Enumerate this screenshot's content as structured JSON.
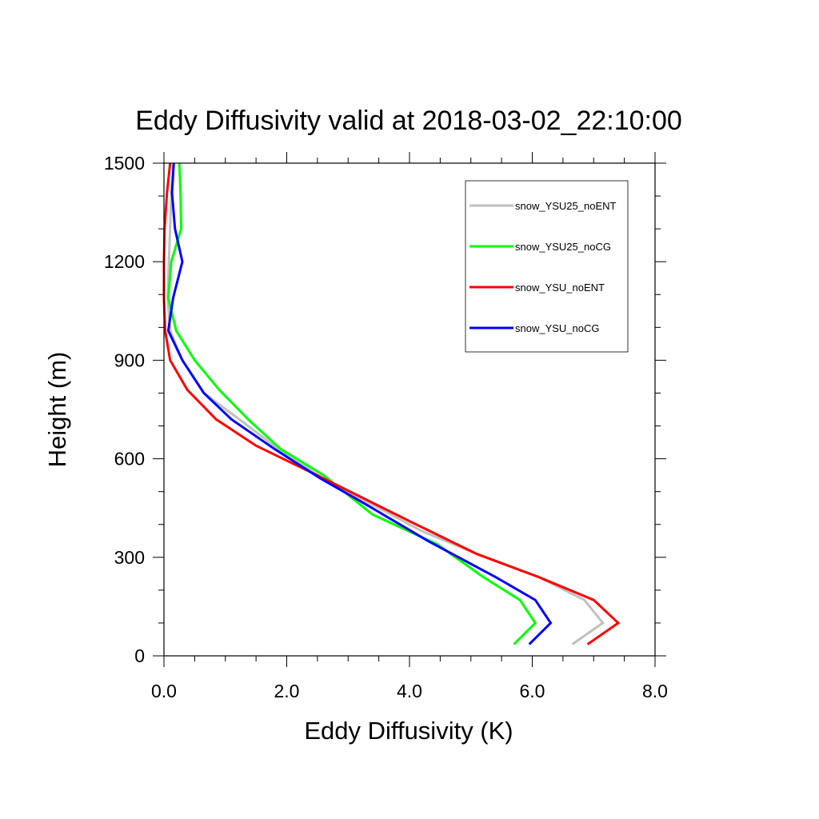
{
  "chart_data": {
    "type": "line",
    "title": "Eddy Diffusivity valid at 2018-03-02_22:10:00",
    "xlabel": "Eddy Diffusivity (K)",
    "ylabel": "Height (m)",
    "xlim": [
      0,
      8
    ],
    "ylim": [
      0,
      1500
    ],
    "xticks": [
      0,
      2,
      4,
      6,
      8
    ],
    "xtick_labels": [
      "0.0",
      "2.0",
      "4.0",
      "6.0",
      "8.0"
    ],
    "yticks": [
      0,
      300,
      600,
      900,
      1200,
      1500
    ],
    "ytick_labels": [
      "0",
      "300",
      "600",
      "900",
      "1200",
      "1500"
    ],
    "grid": false,
    "legend_position": "top-right",
    "series": [
      {
        "name": "snow_YSU25_noENT",
        "color": "#c0c0c0",
        "points": [
          [
            6.65,
            35
          ],
          [
            7.15,
            100
          ],
          [
            6.85,
            170
          ],
          [
            6.1,
            240
          ],
          [
            5.1,
            310
          ],
          [
            4.2,
            380
          ],
          [
            3.3,
            470
          ],
          [
            2.6,
            540
          ],
          [
            2.0,
            610
          ],
          [
            1.3,
            710
          ],
          [
            0.65,
            800
          ],
          [
            0.3,
            900
          ],
          [
            0.1,
            990
          ],
          [
            0.06,
            1090
          ],
          [
            0.08,
            1200
          ],
          [
            0.1,
            1300
          ],
          [
            0.12,
            1410
          ],
          [
            0.15,
            1500
          ]
        ]
      },
      {
        "name": "snow_YSU25_noCG",
        "color": "#00ff00",
        "points": [
          [
            5.7,
            35
          ],
          [
            6.05,
            100
          ],
          [
            5.8,
            170
          ],
          [
            5.2,
            240
          ],
          [
            4.45,
            340
          ],
          [
            3.4,
            430
          ],
          [
            2.6,
            550
          ],
          [
            1.9,
            630
          ],
          [
            1.4,
            715
          ],
          [
            0.9,
            810
          ],
          [
            0.5,
            900
          ],
          [
            0.2,
            990
          ],
          [
            0.07,
            1090
          ],
          [
            0.12,
            1200
          ],
          [
            0.28,
            1300
          ],
          [
            0.27,
            1410
          ],
          [
            0.25,
            1500
          ]
        ]
      },
      {
        "name": "snow_YSU_noENT",
        "color": "#ff0000",
        "points": [
          [
            6.9,
            35
          ],
          [
            7.4,
            100
          ],
          [
            7.0,
            170
          ],
          [
            6.1,
            240
          ],
          [
            5.1,
            310
          ],
          [
            4.0,
            410
          ],
          [
            2.6,
            540
          ],
          [
            1.5,
            640
          ],
          [
            0.85,
            720
          ],
          [
            0.38,
            810
          ],
          [
            0.1,
            900
          ],
          [
            0.02,
            990
          ],
          [
            0.0,
            1090
          ],
          [
            0.0,
            1200
          ],
          [
            0.01,
            1300
          ],
          [
            0.05,
            1410
          ],
          [
            0.1,
            1500
          ]
        ]
      },
      {
        "name": "snow_YSU_noCG",
        "color": "#0000ff",
        "points": [
          [
            5.95,
            35
          ],
          [
            6.3,
            100
          ],
          [
            6.05,
            170
          ],
          [
            5.4,
            240
          ],
          [
            4.3,
            350
          ],
          [
            3.3,
            460
          ],
          [
            2.55,
            540
          ],
          [
            1.8,
            630
          ],
          [
            1.1,
            720
          ],
          [
            0.65,
            800
          ],
          [
            0.3,
            900
          ],
          [
            0.07,
            990
          ],
          [
            0.15,
            1090
          ],
          [
            0.3,
            1200
          ],
          [
            0.18,
            1300
          ],
          [
            0.13,
            1410
          ],
          [
            0.16,
            1500
          ]
        ]
      }
    ]
  }
}
